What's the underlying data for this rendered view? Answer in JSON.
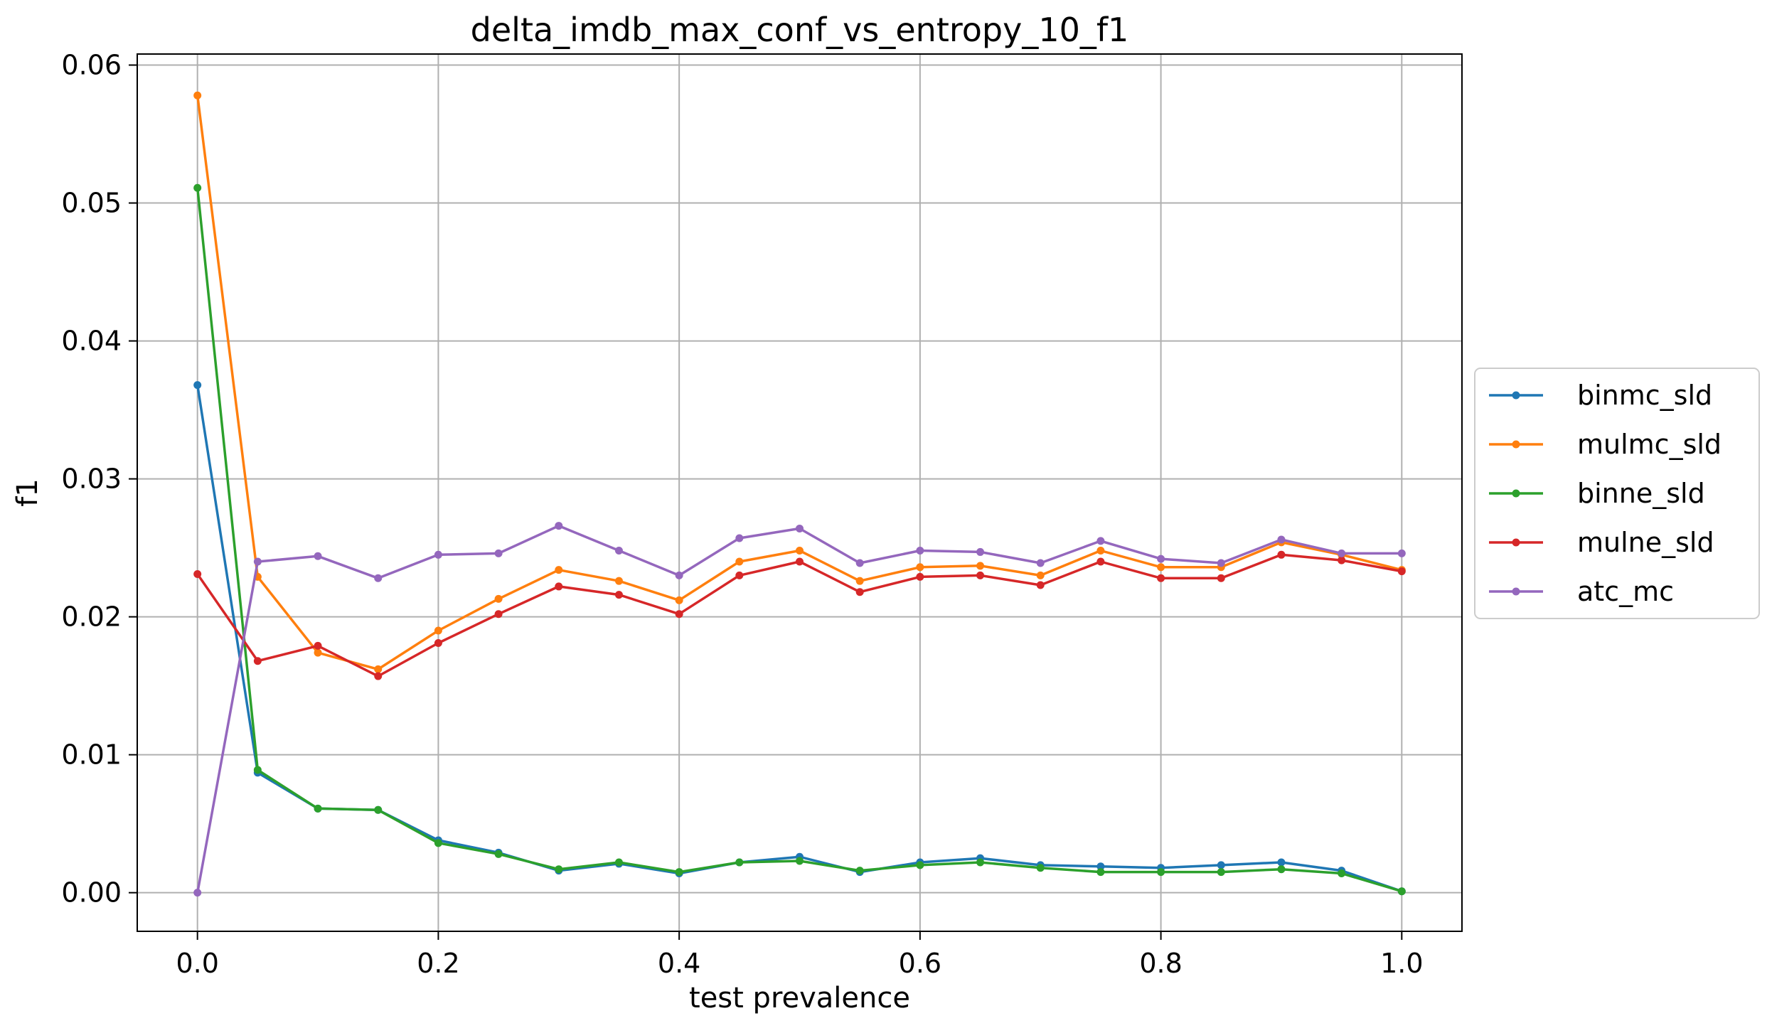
{
  "chart_data": {
    "type": "line",
    "title": "delta_imdb_max_conf_vs_entropy_10_f1",
    "xlabel": "test prevalence",
    "ylabel": "f1",
    "xlim": [
      -0.05,
      1.05
    ],
    "ylim": [
      -0.0028,
      0.0608
    ],
    "xticks": [
      0.0,
      0.2,
      0.4,
      0.6,
      0.8,
      1.0
    ],
    "xtick_labels": [
      "0.0",
      "0.2",
      "0.4",
      "0.6",
      "0.8",
      "1.0"
    ],
    "yticks": [
      0.0,
      0.01,
      0.02,
      0.03,
      0.04,
      0.05,
      0.06
    ],
    "ytick_labels": [
      "0.00",
      "0.01",
      "0.02",
      "0.03",
      "0.04",
      "0.05",
      "0.06"
    ],
    "grid": true,
    "legend_position": "center-right-outside",
    "x": [
      0.0,
      0.05,
      0.1,
      0.15,
      0.2,
      0.25,
      0.3,
      0.35,
      0.4,
      0.45,
      0.5,
      0.55,
      0.6,
      0.65,
      0.7,
      0.75,
      0.8,
      0.85,
      0.9,
      0.95,
      1.0
    ],
    "series": [
      {
        "name": "binmc_sld",
        "color": "#1f77b4",
        "values": [
          0.0368,
          0.0087,
          0.0061,
          0.006,
          0.0038,
          0.0029,
          0.0016,
          0.0021,
          0.0014,
          0.0022,
          0.0026,
          0.0015,
          0.0022,
          0.0025,
          0.002,
          0.0019,
          0.0018,
          0.002,
          0.0022,
          0.0016,
          0.0001
        ]
      },
      {
        "name": "mulmc_sld",
        "color": "#ff7f0e",
        "values": [
          0.0578,
          0.0229,
          0.0174,
          0.0162,
          0.019,
          0.0213,
          0.0234,
          0.0226,
          0.0212,
          0.024,
          0.0248,
          0.0226,
          0.0236,
          0.0237,
          0.023,
          0.0248,
          0.0236,
          0.0236,
          0.0254,
          0.0245,
          0.0234
        ]
      },
      {
        "name": "binne_sld",
        "color": "#2ca02c",
        "values": [
          0.0511,
          0.0089,
          0.0061,
          0.006,
          0.0036,
          0.0028,
          0.0017,
          0.0022,
          0.0015,
          0.0022,
          0.0023,
          0.0016,
          0.002,
          0.0022,
          0.0018,
          0.0015,
          0.0015,
          0.0015,
          0.0017,
          0.0014,
          0.0001
        ]
      },
      {
        "name": "mulne_sld",
        "color": "#d62728",
        "values": [
          0.0231,
          0.0168,
          0.0179,
          0.0157,
          0.0181,
          0.0202,
          0.0222,
          0.0216,
          0.0202,
          0.023,
          0.024,
          0.0218,
          0.0229,
          0.023,
          0.0223,
          0.024,
          0.0228,
          0.0228,
          0.0245,
          0.0241,
          0.0233
        ]
      },
      {
        "name": "atc_mc",
        "color": "#9467bd",
        "values": [
          0.0,
          0.024,
          0.0244,
          0.0228,
          0.0245,
          0.0246,
          0.0266,
          0.0248,
          0.023,
          0.0257,
          0.0264,
          0.0239,
          0.0248,
          0.0247,
          0.0239,
          0.0255,
          0.0242,
          0.0239,
          0.0256,
          0.0246,
          0.0246
        ]
      }
    ]
  }
}
